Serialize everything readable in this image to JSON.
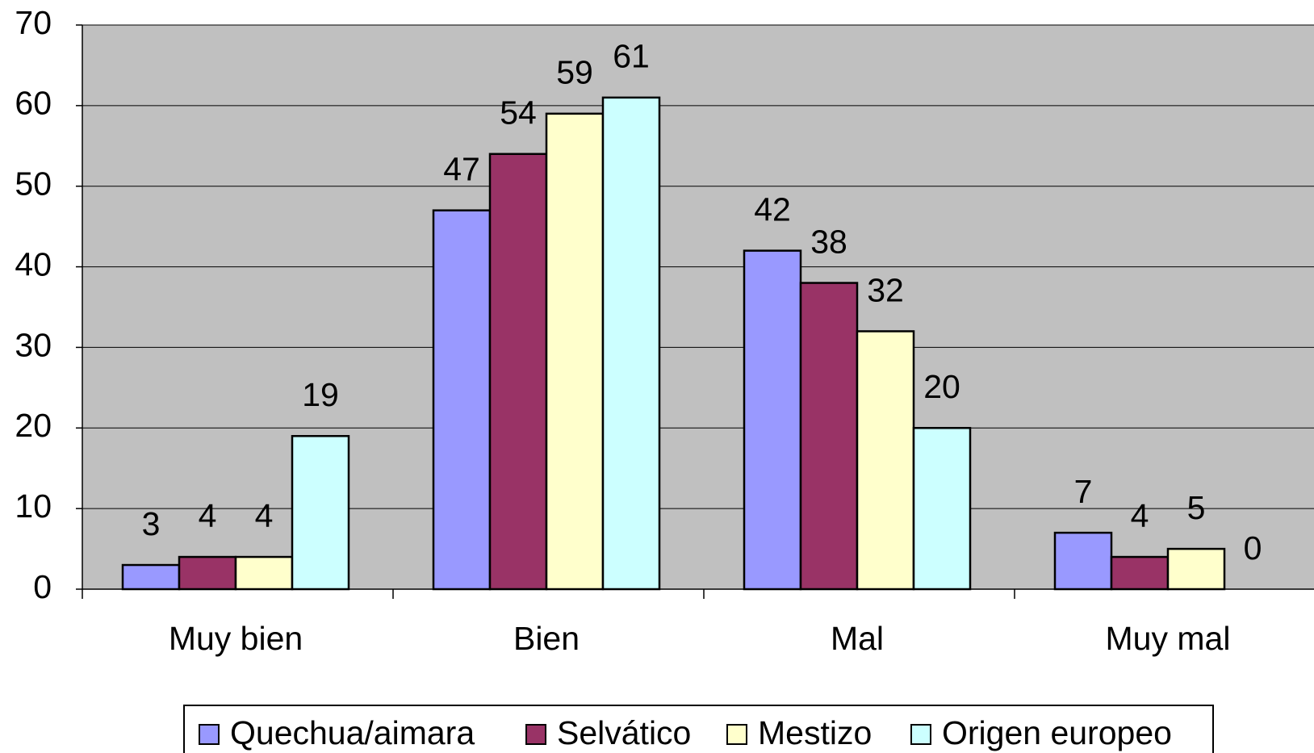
{
  "chart_data": {
    "type": "bar",
    "categories": [
      "Muy bien",
      "Bien",
      "Mal",
      "Muy mal"
    ],
    "series": [
      {
        "name": "Quechua/aimara",
        "color": "#9999ff",
        "values": [
          3,
          47,
          42,
          7
        ]
      },
      {
        "name": "Selvático",
        "color": "#993366",
        "values": [
          4,
          54,
          38,
          4
        ]
      },
      {
        "name": "Mestizo",
        "color": "#ffffcc",
        "values": [
          4,
          59,
          32,
          5
        ]
      },
      {
        "name": "Origen europeo",
        "color": "#ccffff",
        "values": [
          19,
          61,
          20,
          0
        ]
      }
    ],
    "ylim": [
      0,
      70
    ],
    "yticks": [
      0,
      10,
      20,
      30,
      40,
      50,
      60,
      70
    ],
    "grid": true,
    "legend": "bottom"
  }
}
